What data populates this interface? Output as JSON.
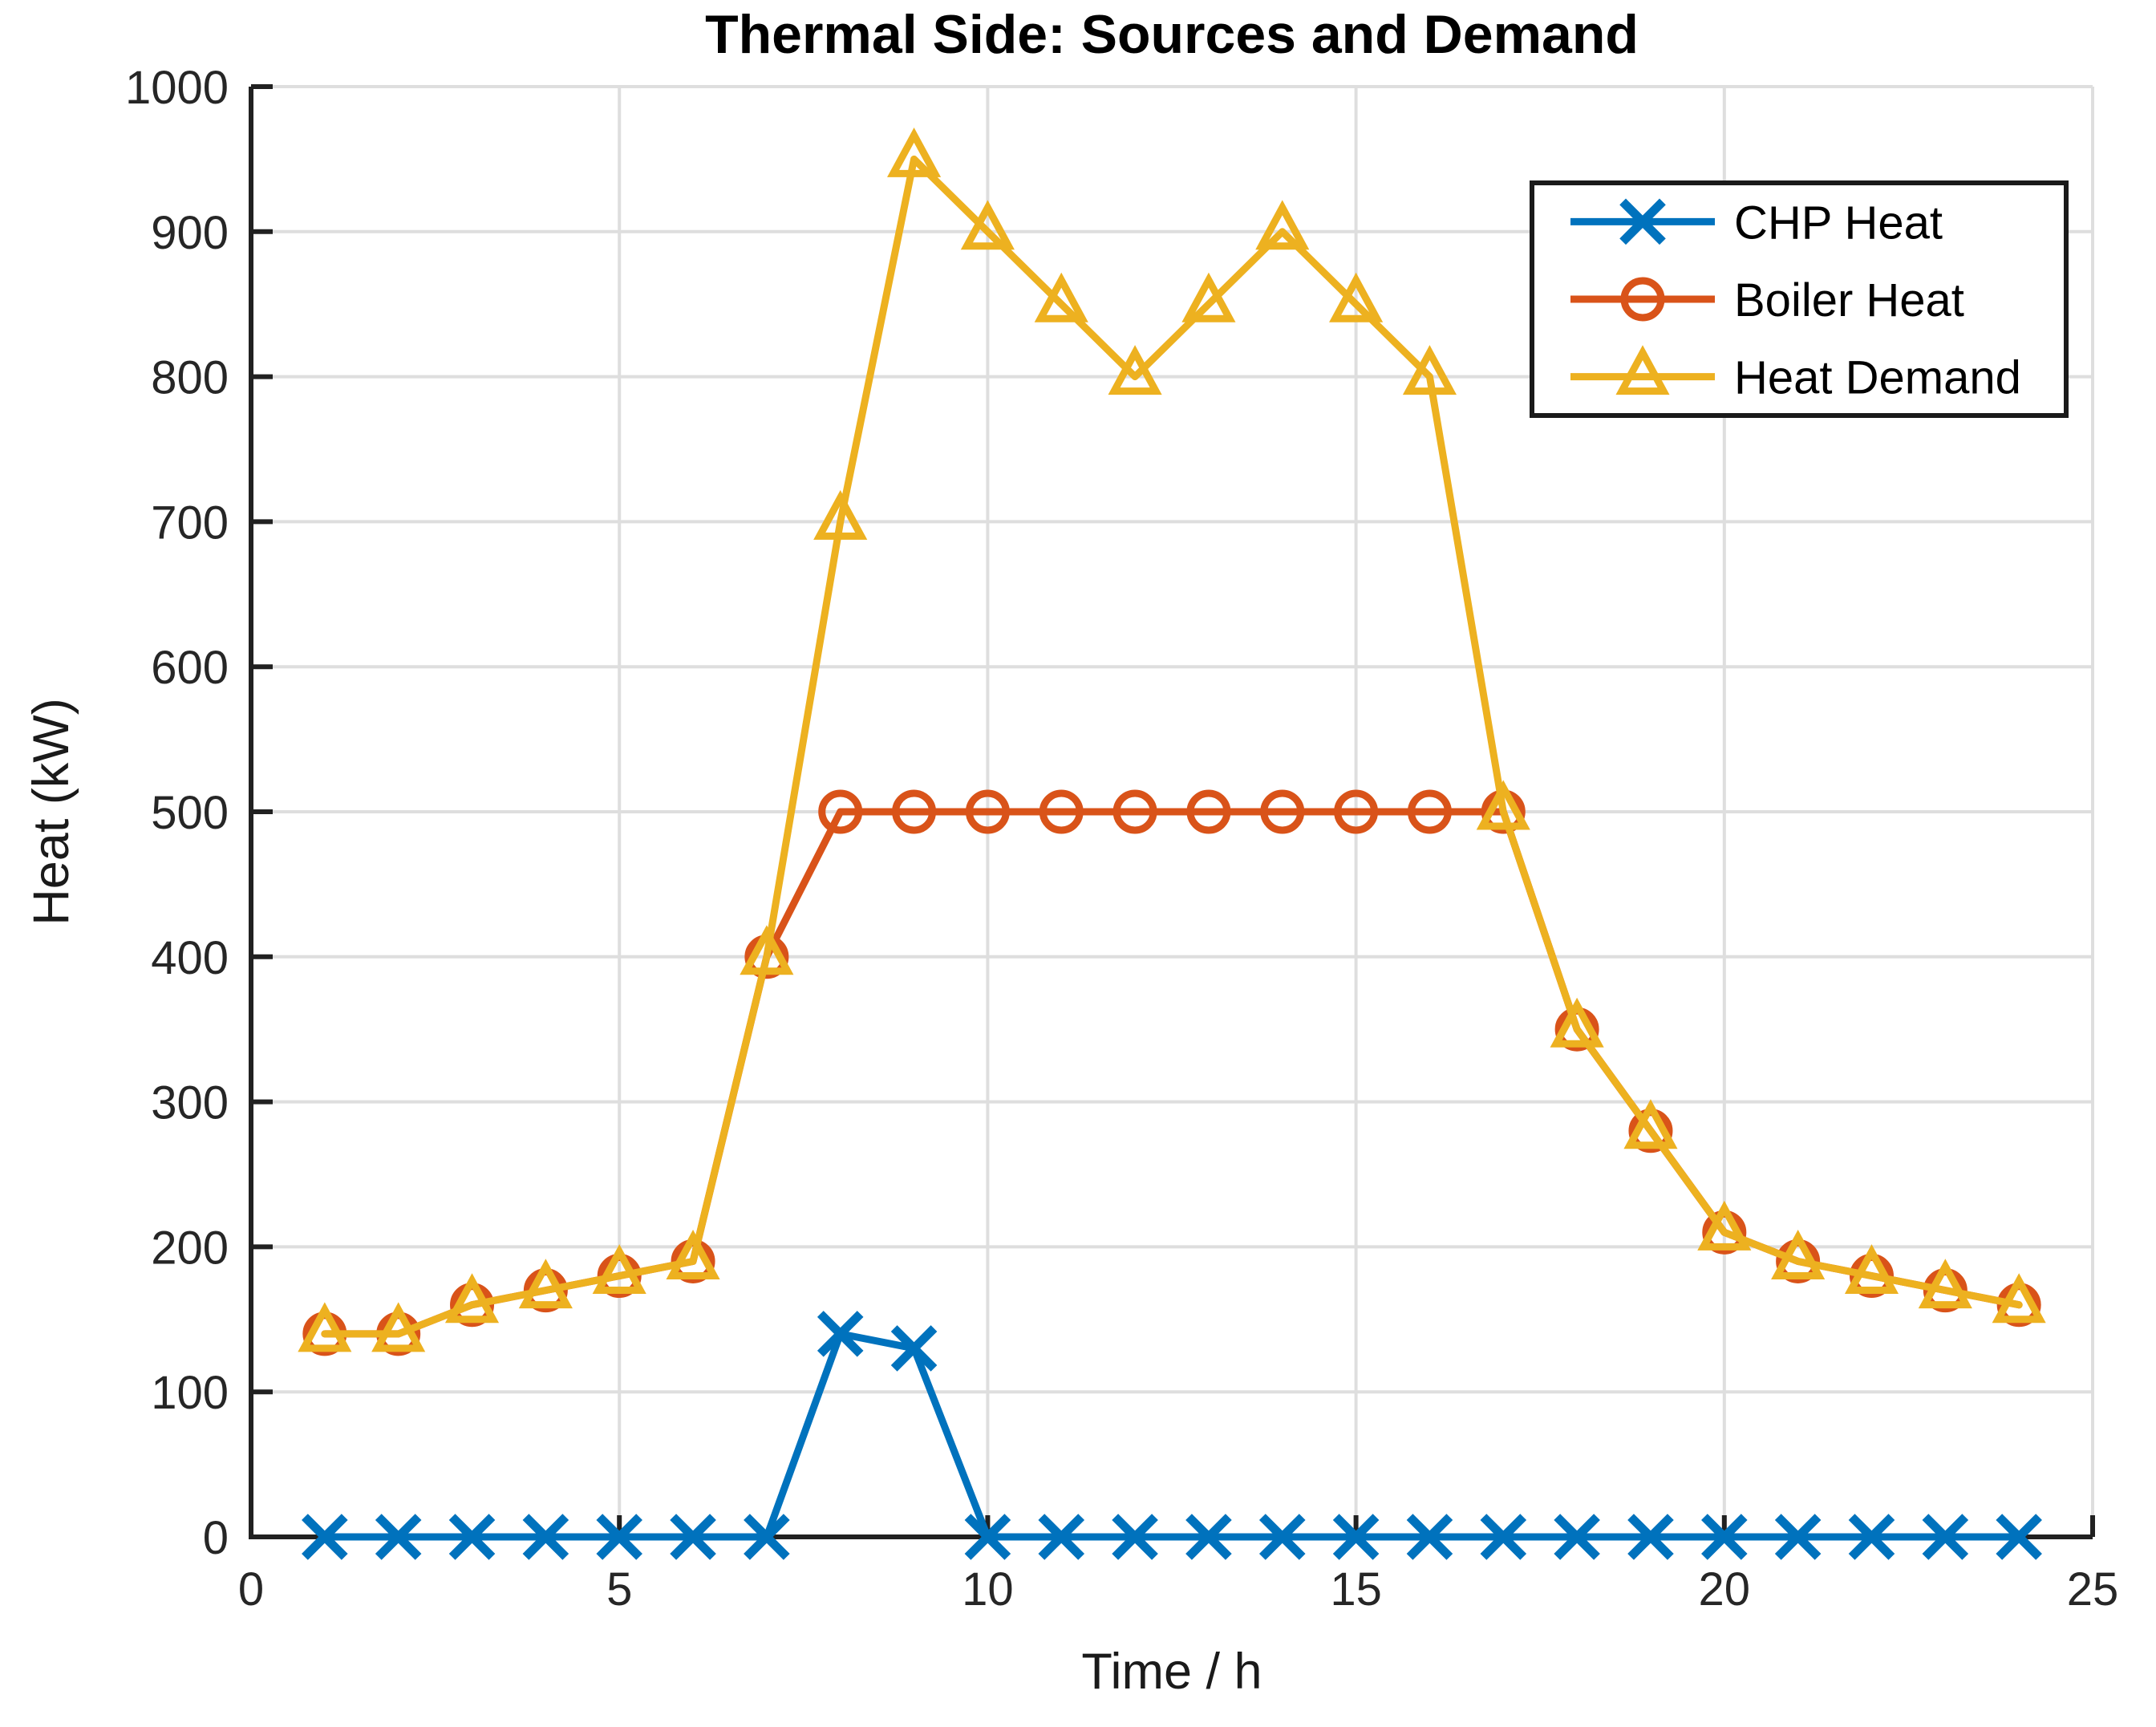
{
  "figure": {
    "title": "Thermal Side: Sources and Demand",
    "xlabel": "Time / h",
    "ylabel": "Heat (kW)"
  },
  "chart_data": {
    "type": "line",
    "title": "Thermal Side: Sources and Demand",
    "xlabel": "Time / h",
    "ylabel": "Heat (kW)",
    "xlim": [
      0,
      25
    ],
    "ylim": [
      0,
      1000
    ],
    "xticks": [
      0,
      5,
      10,
      15,
      20,
      25
    ],
    "yticks": [
      0,
      100,
      200,
      300,
      400,
      500,
      600,
      700,
      800,
      900,
      1000
    ],
    "grid": true,
    "legend_position": "top-right",
    "x": [
      1,
      2,
      3,
      4,
      5,
      6,
      7,
      8,
      9,
      10,
      11,
      12,
      13,
      14,
      15,
      16,
      17,
      18,
      19,
      20,
      21,
      22,
      23,
      24
    ],
    "series": [
      {
        "name": "CHP Heat",
        "marker": "x",
        "color": "#0072BD",
        "values": [
          0,
          0,
          0,
          0,
          0,
          0,
          0,
          140,
          130,
          0,
          0,
          0,
          0,
          0,
          0,
          0,
          0,
          0,
          0,
          0,
          0,
          0,
          0,
          0
        ]
      },
      {
        "name": "Boiler Heat",
        "marker": "circle",
        "color": "#D95319",
        "values": [
          140,
          140,
          160,
          170,
          180,
          190,
          400,
          500,
          500,
          500,
          500,
          500,
          500,
          500,
          500,
          500,
          500,
          350,
          280,
          210,
          190,
          180,
          170,
          160
        ]
      },
      {
        "name": "Heat Demand",
        "marker": "triangle",
        "color": "#EDB120",
        "values": [
          140,
          140,
          160,
          170,
          180,
          190,
          400,
          700,
          950,
          900,
          850,
          800,
          850,
          900,
          850,
          800,
          500,
          350,
          280,
          210,
          190,
          180,
          170,
          160
        ]
      }
    ]
  },
  "style_colors": {
    "grid": "#DEDEDE",
    "axis": "#212121",
    "legend_border": "#1a1a1a",
    "background": "#ffffff"
  }
}
